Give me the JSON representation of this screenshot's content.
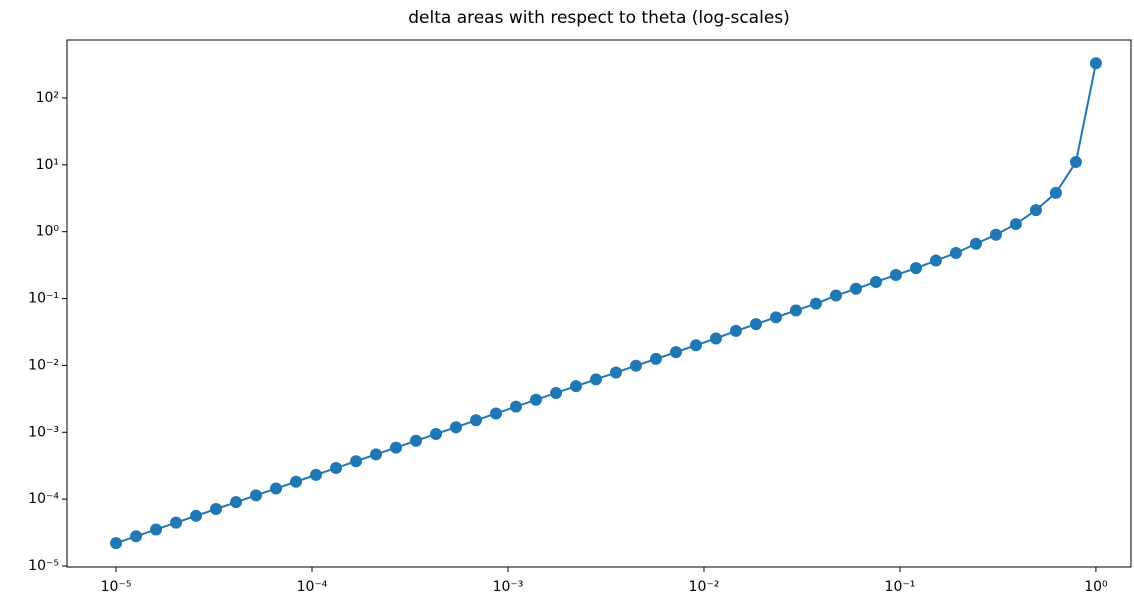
{
  "chart_data": {
    "type": "line",
    "title": "delta areas with respect to theta (log-scales)",
    "xscale": "log",
    "yscale": "log",
    "grid": false,
    "xlim": [
      5.62e-06,
      1.51
    ],
    "ylim": [
      9.66e-06,
      736
    ],
    "xticks": [
      {
        "value": 1e-05,
        "label": "10⁻⁵"
      },
      {
        "value": 0.0001,
        "label": "10⁻⁴"
      },
      {
        "value": 0.001,
        "label": "10⁻³"
      },
      {
        "value": 0.01,
        "label": "10⁻²"
      },
      {
        "value": 0.1,
        "label": "10⁻¹"
      },
      {
        "value": 1,
        "label": "10⁰"
      }
    ],
    "yticks": [
      {
        "value": 1e-05,
        "label": "10⁻⁵"
      },
      {
        "value": 0.0001,
        "label": "10⁻⁴"
      },
      {
        "value": 0.001,
        "label": "10⁻³"
      },
      {
        "value": 0.01,
        "label": "10⁻²"
      },
      {
        "value": 0.1,
        "label": "10⁻¹"
      },
      {
        "value": 1,
        "label": "10⁰"
      },
      {
        "value": 10,
        "label": "10¹"
      },
      {
        "value": 100,
        "label": "10²"
      }
    ],
    "x": [
      1e-05,
      1.265e-05,
      1.6e-05,
      2.024e-05,
      2.56e-05,
      3.237e-05,
      4.095e-05,
      5.179e-05,
      6.551e-05,
      8.286e-05,
      0.0001048,
      0.0001326,
      0.0001677,
      0.0002121,
      0.0002683,
      0.0003393,
      0.0004292,
      0.0005429,
      0.0006866,
      0.0008685,
      0.001099,
      0.001389,
      0.001758,
      0.002223,
      0.002812,
      0.003556,
      0.004498,
      0.00569,
      0.007197,
      0.009103,
      0.01151,
      0.01456,
      0.01842,
      0.0233,
      0.02947,
      0.03728,
      0.04715,
      0.05964,
      0.07543,
      0.09541,
      0.1207,
      0.1526,
      0.1931,
      0.2442,
      0.3089,
      0.3907,
      0.4942,
      0.6251,
      0.7906,
      1
    ],
    "series": [
      {
        "color": "#1f77b4",
        "values": [
          2.2e-05,
          2.78e-05,
          3.52e-05,
          4.45e-05,
          5.63e-05,
          7.12e-05,
          9.01e-05,
          0.000114,
          0.000144,
          0.000182,
          0.000231,
          0.000292,
          0.000369,
          0.000467,
          0.00059,
          0.000746,
          0.000944,
          0.00119,
          0.00151,
          0.00191,
          0.00242,
          0.00306,
          0.00387,
          0.00489,
          0.00619,
          0.00782,
          0.0099,
          0.0125,
          0.0158,
          0.02,
          0.0253,
          0.0328,
          0.0414,
          0.0524,
          0.0663,
          0.0839,
          0.111,
          0.14,
          0.177,
          0.225,
          0.285,
          0.37,
          0.48,
          0.66,
          0.9,
          1.3,
          2.1,
          3.8,
          11,
          330
        ]
      }
    ]
  }
}
